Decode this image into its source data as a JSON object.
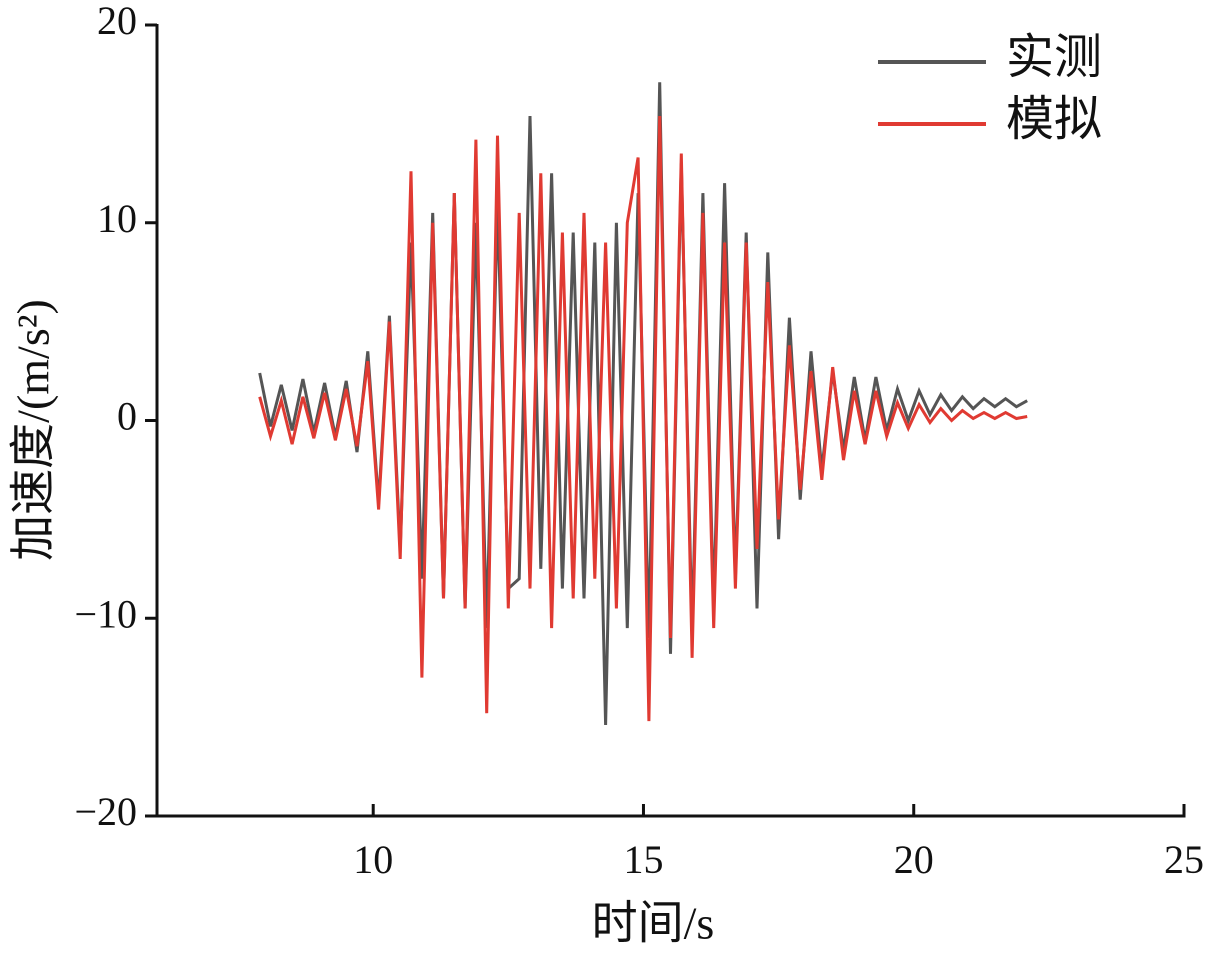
{
  "chart_data": {
    "type": "line",
    "xlabel": "时间/s",
    "ylabel": "加速度/(m/s²)",
    "x": [
      7.9,
      8.1,
      8.3,
      8.5,
      8.7,
      8.9,
      9.1,
      9.3,
      9.5,
      9.7,
      9.9,
      10.1,
      10.3,
      10.5,
      10.7,
      10.9,
      11.1,
      11.3,
      11.5,
      11.7,
      11.9,
      12.1,
      12.3,
      12.5,
      12.7,
      12.9,
      13.1,
      13.3,
      13.5,
      13.7,
      13.9,
      14.1,
      14.3,
      14.5,
      14.7,
      14.9,
      15.1,
      15.3,
      15.5,
      15.7,
      15.9,
      16.1,
      16.3,
      16.5,
      16.7,
      16.9,
      17.1,
      17.3,
      17.5,
      17.7,
      17.9,
      18.1,
      18.3,
      18.5,
      18.7,
      18.9,
      19.1,
      19.3,
      19.5,
      19.7,
      19.9,
      20.1,
      20.3,
      20.5,
      20.7,
      20.9,
      21.1,
      21.3,
      21.5,
      21.7,
      21.9,
      22.1
    ],
    "series": [
      {
        "name": "实测",
        "color": "#555555",
        "values": [
          2.4,
          -0.3,
          1.8,
          -0.5,
          2.1,
          -0.6,
          1.9,
          -0.8,
          2.0,
          -1.6,
          3.5,
          -4.2,
          5.3,
          -6.5,
          9.0,
          -8.0,
          10.5,
          -9.0,
          11.5,
          -9.5,
          10.0,
          -10.5,
          11.0,
          -8.5,
          -8.0,
          15.4,
          -7.5,
          12.5,
          -8.5,
          9.5,
          -9.0,
          9.0,
          -15.4,
          10.0,
          -10.5,
          11.5,
          -11.0,
          17.1,
          -11.8,
          13.0,
          -10.8,
          11.5,
          -9.5,
          12.0,
          -8.0,
          9.5,
          -9.5,
          8.5,
          -6.0,
          5.2,
          -4.0,
          3.5,
          -2.5,
          2.5,
          -1.5,
          2.2,
          -1.0,
          2.2,
          -0.5,
          1.6,
          0.0,
          1.5,
          0.3,
          1.3,
          0.5,
          1.2,
          0.6,
          1.1,
          0.7,
          1.1,
          0.7,
          1.0
        ]
      },
      {
        "name": "模拟",
        "color": "#e03a32",
        "values": [
          1.2,
          -0.8,
          1.0,
          -1.2,
          1.2,
          -0.9,
          1.4,
          -1.0,
          1.6,
          -1.3,
          3.0,
          -4.5,
          5.0,
          -7.0,
          12.6,
          -13.0,
          10.0,
          -9.0,
          11.5,
          -9.5,
          14.2,
          -14.8,
          14.4,
          -9.5,
          10.5,
          -8.5,
          12.5,
          -10.5,
          9.5,
          -9.0,
          10.5,
          -8.0,
          9.0,
          -9.5,
          10.0,
          13.3,
          -15.2,
          15.4,
          -11.0,
          13.5,
          -12.0,
          10.5,
          -10.5,
          9.0,
          -8.5,
          9.0,
          -6.5,
          7.0,
          -5.0,
          3.8,
          -3.5,
          2.5,
          -3.0,
          2.7,
          -2.0,
          1.5,
          -1.2,
          1.5,
          -0.8,
          0.9,
          -0.4,
          0.8,
          -0.1,
          0.6,
          0.0,
          0.5,
          0.1,
          0.4,
          0.1,
          0.4,
          0.1,
          0.2
        ]
      }
    ],
    "xlim": [
      6,
      25
    ],
    "xticks": [
      10,
      15,
      20,
      25
    ],
    "ylim": [
      -20,
      20
    ],
    "yticks": [
      {
        "value": -20,
        "label": "−20"
      },
      {
        "value": -10,
        "label": "−10"
      },
      0,
      10,
      20
    ],
    "grid": false,
    "legend": "upper right"
  }
}
